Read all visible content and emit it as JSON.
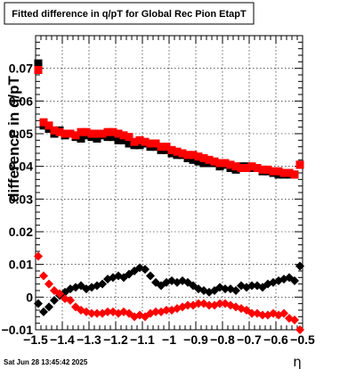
{
  "chart_data": {
    "type": "scatter",
    "title": "Fitted difference in q/pT for Global Rec Pion EtapT",
    "xlabel": "η",
    "ylabel": "difference in q/pT",
    "xlim": [
      -1.5,
      -0.5
    ],
    "ylim": [
      -0.01,
      0.08
    ],
    "grid": true,
    "x_ticks": [
      "−1.5",
      "−1.4",
      "−1.3",
      "−1.2",
      "−1.1",
      "−1",
      "−0.9",
      "−0.8",
      "−0.7",
      "−0.6",
      "−0.5"
    ],
    "y_ticks": [
      "−0.01",
      "0",
      "0.01",
      "0.02",
      "0.03",
      "0.04",
      "0.05",
      "0.06",
      "0.07"
    ],
    "x": [
      -1.49,
      -1.47,
      -1.45,
      -1.43,
      -1.41,
      -1.39,
      -1.37,
      -1.35,
      -1.33,
      -1.31,
      -1.29,
      -1.27,
      -1.25,
      -1.23,
      -1.21,
      -1.19,
      -1.17,
      -1.15,
      -1.13,
      -1.11,
      -1.09,
      -1.07,
      -1.05,
      -1.03,
      -1.01,
      -0.99,
      -0.97,
      -0.95,
      -0.93,
      -0.91,
      -0.89,
      -0.87,
      -0.85,
      -0.83,
      -0.81,
      -0.79,
      -0.77,
      -0.75,
      -0.73,
      -0.71,
      -0.69,
      -0.67,
      -0.65,
      -0.63,
      -0.61,
      -0.59,
      -0.57,
      -0.55,
      -0.53,
      -0.51
    ],
    "series": [
      {
        "marker": "square",
        "color": "#000000",
        "values": [
          0.0715,
          0.0525,
          0.0515,
          0.05,
          0.051,
          0.0495,
          0.05,
          0.049,
          0.0485,
          0.0495,
          0.049,
          0.0485,
          0.0495,
          0.049,
          0.049,
          0.048,
          0.048,
          0.047,
          0.0465,
          0.0465,
          0.047,
          0.046,
          0.046,
          0.045,
          0.045,
          0.044,
          0.0435,
          0.0435,
          0.0425,
          0.042,
          0.0415,
          0.041,
          0.041,
          0.041,
          0.04,
          0.0405,
          0.0395,
          0.039,
          0.04,
          0.04,
          0.0395,
          0.0395,
          0.0385,
          0.0385,
          0.038,
          0.0375,
          0.0375,
          0.0375,
          0.0375,
          0.0405
        ]
      },
      {
        "marker": "square",
        "color": "#ff0000",
        "values": [
          0.0695,
          0.0535,
          0.0525,
          0.051,
          0.0505,
          0.05,
          0.05,
          0.0495,
          0.0505,
          0.0505,
          0.05,
          0.05,
          0.05,
          0.0505,
          0.0505,
          0.05,
          0.0495,
          0.049,
          0.0475,
          0.048,
          0.0475,
          0.047,
          0.047,
          0.046,
          0.046,
          0.045,
          0.0445,
          0.044,
          0.0435,
          0.0435,
          0.043,
          0.0425,
          0.042,
          0.0415,
          0.041,
          0.041,
          0.0405,
          0.04,
          0.0395,
          0.0395,
          0.04,
          0.0395,
          0.039,
          0.039,
          0.0385,
          0.0385,
          0.038,
          0.038,
          0.0375,
          0.0405
        ]
      },
      {
        "marker": "diamond",
        "color": "#000000",
        "values": [
          -0.002,
          -0.0045,
          -0.003,
          -0.001,
          0.0005,
          0.0015,
          0.0025,
          0.003,
          0.0035,
          0.0025,
          0.003,
          0.0035,
          0.004,
          0.0055,
          0.006,
          0.0065,
          0.006,
          0.007,
          0.008,
          0.009,
          0.0085,
          0.0065,
          0.0045,
          0.0035,
          0.0045,
          0.005,
          0.0045,
          0.005,
          0.0045,
          0.0035,
          0.0025,
          0.002,
          0.0015,
          0.002,
          0.003,
          0.0025,
          0.0025,
          0.002,
          0.0035,
          0.003,
          0.0035,
          0.0035,
          0.003,
          0.004,
          0.0045,
          0.005,
          0.0055,
          0.006,
          0.005,
          0.0095
        ]
      },
      {
        "marker": "diamond",
        "color": "#ff0000",
        "values": [
          0.0125,
          0.0065,
          0.004,
          0.002,
          0.001,
          -0.0005,
          -0.001,
          -0.003,
          -0.004,
          -0.0045,
          -0.005,
          -0.005,
          -0.005,
          -0.0045,
          -0.0045,
          -0.005,
          -0.0045,
          -0.005,
          -0.006,
          -0.0055,
          -0.006,
          -0.005,
          -0.0045,
          -0.0045,
          -0.004,
          -0.004,
          -0.0035,
          -0.003,
          -0.0025,
          -0.0025,
          -0.002,
          -0.002,
          -0.0025,
          -0.0025,
          -0.002,
          -0.002,
          -0.0025,
          -0.003,
          -0.0035,
          -0.004,
          -0.005,
          -0.005,
          -0.0055,
          -0.0055,
          -0.005,
          -0.0055,
          -0.005,
          -0.0065,
          -0.007,
          -0.01
        ]
      }
    ]
  },
  "footer": {
    "timestamp": "Sat Jun 28 13:45:42 2025"
  }
}
